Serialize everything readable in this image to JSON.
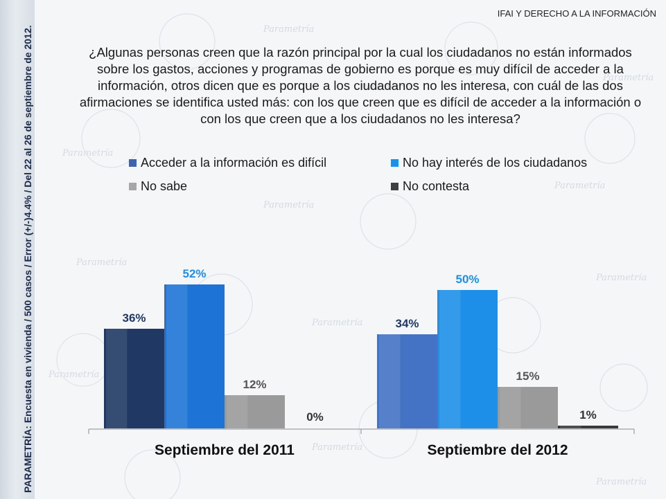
{
  "header": {
    "title": "IFAI Y DERECHO A LA INFORMACIÓN"
  },
  "sidebar": {
    "source_text": "PARAMETRÍA: Encuesta en vivienda / 500 casos / Error (+/-)4.4% / Del 22 al 26 de septiembre de 2012."
  },
  "watermark": {
    "brand": "Parametría"
  },
  "question": "¿Algunas personas creen que la razón principal por la cual los ciudadanos no están informados sobre los gastos, acciones y programas de gobierno es porque es muy difícil de acceder a la información, otros dicen que es porque a los ciudadanos no les interesa, con cuál de las dos afirmaciones se identifica usted más: con los que creen que es difícil de acceder a la información o con los que creen que a los ciudadanos no les interesa?",
  "chart_data": {
    "type": "bar",
    "categories": [
      "Septiembre del 2011",
      "Septiembre del 2012"
    ],
    "series": [
      {
        "name": "Acceder a la información es difícil",
        "values": [
          36,
          34
        ],
        "labels": [
          "36%",
          "34%"
        ],
        "colors": [
          "#1f3864",
          "#4472c4"
        ],
        "legend_color": "#3f63ad",
        "label_color": "#1f3864"
      },
      {
        "name": "No hay interés de los ciudadanos",
        "values": [
          52,
          50
        ],
        "labels": [
          "52%",
          "50%"
        ],
        "colors": [
          "#1e74d6",
          "#1e8fe8"
        ],
        "legend_color": "#1e8fe8",
        "label_color": "#1e8fe8"
      },
      {
        "name": "No sabe",
        "values": [
          12,
          15
        ],
        "labels": [
          "12%",
          "15%"
        ],
        "colors": [
          "#9a9a9a",
          "#9a9a9a"
        ],
        "legend_color": "#a6a6a6",
        "label_color": "#555555"
      },
      {
        "name": "No contesta",
        "values": [
          0,
          1
        ],
        "labels": [
          "0%",
          "1%"
        ],
        "colors": [
          "#3a3a3a",
          "#3a3a3a"
        ],
        "legend_color": "#404040",
        "label_color": "#333333"
      }
    ],
    "ylim": [
      0,
      60
    ],
    "legend_position": "top",
    "grid": false
  }
}
